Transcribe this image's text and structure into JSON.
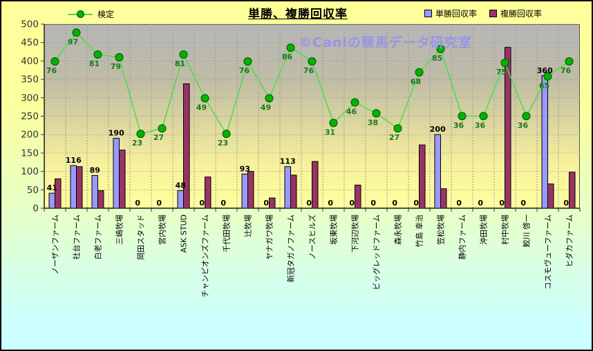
{
  "title": "単勝、複勝回収率",
  "watermark": "©Caniの競馬データ研究室",
  "legend_left": {
    "label": "検定"
  },
  "legend_right": [
    {
      "label": "単勝回収率",
      "color": "#9999ff"
    },
    {
      "label": "複勝回収率",
      "color": "#993366"
    }
  ],
  "chart_data": {
    "type": "bar",
    "title": "単勝、複勝回収率",
    "categories": [
      "ノーザンファーム",
      "社台ファーム",
      "白老ファーム",
      "三嶋牧場",
      "岡田スタッド",
      "宮内牧場",
      "ASK STUD",
      "チャンピオンズファーム",
      "千代田牧場",
      "辻牧場",
      "ヤナガワ牧場",
      "新冠タガノファーム",
      "ノースヒルズ",
      "坂東牧場",
      "下河辺牧場",
      "ビッグレッドファーム",
      "森永牧場",
      "竹島 幸治",
      "笠松牧場",
      "静内ファーム",
      "沖田牧場",
      "村中牧場",
      "鮫川 啓一",
      "コスモヴューファーム",
      "ヒダカファーム"
    ],
    "series": [
      {
        "name": "単勝回収率",
        "type": "bar",
        "color": "#9999ff",
        "values": [
          41,
          116,
          89,
          190,
          0,
          0,
          48,
          0,
          0,
          93,
          0,
          113,
          0,
          0,
          0,
          0,
          0,
          0,
          200,
          0,
          0,
          0,
          0,
          360,
          0
        ],
        "data_labels": true
      },
      {
        "name": "複勝回収率",
        "type": "bar",
        "color": "#993366",
        "values": [
          80,
          113,
          48,
          158,
          0,
          0,
          338,
          85,
          0,
          100,
          28,
          90,
          127,
          0,
          63,
          0,
          0,
          172,
          53,
          0,
          0,
          437,
          0,
          66,
          98
        ],
        "data_labels": false
      },
      {
        "name": "検定",
        "type": "line",
        "color": "#4ddb4d",
        "marker_color": "#00b400",
        "values": [
          76,
          97,
          81,
          79,
          23,
          27,
          81,
          49,
          23,
          76,
          49,
          86,
          76,
          31,
          46,
          38,
          27,
          68,
          85,
          36,
          36,
          75,
          36,
          65,
          76
        ],
        "data_labels": true,
        "secondary_mapping": {
          "intercept": 116.5,
          "slope": 3.716,
          "note": "検定 value v is drawn at primary-axis height 116.5 + 3.716*v"
        }
      }
    ],
    "ylim": [
      0,
      500
    ],
    "y_ticks": [
      500,
      450,
      400,
      350,
      300,
      250,
      200,
      150,
      100,
      50,
      0
    ],
    "grid": true,
    "legend_position": "top"
  }
}
